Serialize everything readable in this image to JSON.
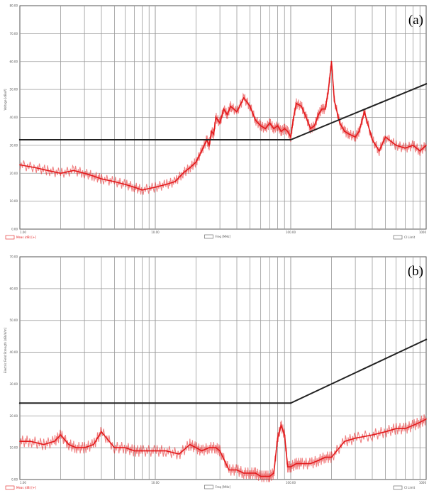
{
  "colors": {
    "measurement": "#e31a1c",
    "limit": "#222222",
    "grid": "#9a9a9a",
    "background": "#ffffff"
  },
  "chart_data": [
    {
      "type": "line",
      "panel_label": "(a)",
      "xscale": "log",
      "xlim": [
        1,
        1000
      ],
      "ylim": [
        0,
        80
      ],
      "xlabel": "Freq [MHz]",
      "ylabel": "Voltage [dBuV]",
      "xticks": [
        "1.00",
        "10.00",
        "100.00",
        "1000"
      ],
      "yticks": [
        "0.00",
        "10.00",
        "20.00",
        "30.00",
        "40.00",
        "50.00",
        "60.00",
        "70.00",
        "80.00"
      ],
      "legend": {
        "measurement": "Meas (dB) [+]",
        "limit": "CI Limit"
      },
      "grid": true,
      "series": [
        {
          "role": "measurement",
          "x": [
            1,
            1.3,
            1.6,
            2,
            2.5,
            3,
            3.5,
            4,
            5,
            6,
            7,
            8,
            10,
            12,
            14,
            16,
            18,
            20,
            22,
            24,
            25,
            26,
            27,
            28,
            30,
            32,
            34,
            36,
            40,
            45,
            50,
            55,
            60,
            65,
            70,
            75,
            80,
            85,
            90,
            95,
            100,
            105,
            110,
            120,
            130,
            140,
            150,
            160,
            170,
            180,
            190,
            200,
            210,
            230,
            250,
            270,
            300,
            320,
            350,
            400,
            450,
            500,
            600,
            700,
            800,
            900,
            1000
          ],
          "y": [
            23,
            22,
            21,
            20,
            21,
            20,
            19,
            18,
            17,
            16,
            15,
            14,
            15,
            16,
            17,
            20,
            22,
            24,
            28,
            32,
            30,
            35,
            34,
            40,
            38,
            43,
            41,
            44,
            42,
            47,
            44,
            39,
            37,
            36,
            38,
            36,
            37,
            35,
            36,
            35,
            33,
            40,
            45,
            44,
            40,
            36,
            37,
            41,
            43,
            43,
            50,
            60,
            46,
            38,
            35,
            34,
            33,
            35,
            42,
            32,
            28,
            33,
            30,
            29,
            30,
            28,
            30
          ]
        },
        {
          "role": "limit",
          "x": [
            1,
            100,
            1000
          ],
          "y": [
            32,
            32,
            52
          ]
        }
      ]
    },
    {
      "type": "line",
      "panel_label": "(b)",
      "xscale": "log",
      "xlim": [
        1,
        1000
      ],
      "ylim": [
        0,
        70
      ],
      "xlabel": "Freq [MHz]",
      "ylabel": "Electric Field Strength [dBuV/m]",
      "xticks": [
        "1.00",
        "10.00",
        "100.00",
        "1000"
      ],
      "yticks": [
        "0.00",
        "10.00",
        "20.00",
        "30.00",
        "40.00",
        "50.00",
        "60.00",
        "70.00"
      ],
      "legend": {
        "measurement": "Meas (dB) [+]",
        "limit": "CI Limit"
      },
      "grid": true,
      "series": [
        {
          "role": "measurement",
          "x": [
            1,
            1.2,
            1.5,
            1.8,
            2,
            2.3,
            2.6,
            3,
            3.5,
            4,
            5,
            6,
            7,
            8,
            10,
            12,
            15,
            18,
            20,
            22,
            25,
            28,
            30,
            35,
            40,
            45,
            50,
            55,
            60,
            65,
            70,
            75,
            80,
            85,
            90,
            95,
            100,
            110,
            120,
            140,
            160,
            180,
            200,
            250,
            300,
            400,
            500,
            600,
            700,
            800,
            900,
            1000
          ],
          "y": [
            12,
            12,
            11,
            12,
            14,
            11,
            10,
            10,
            11,
            15,
            10,
            10,
            9,
            9,
            9,
            9,
            8,
            11,
            10,
            9,
            10,
            10,
            9,
            3,
            3,
            2,
            2,
            2,
            1,
            1,
            1,
            2,
            13,
            17,
            14,
            4,
            4,
            5,
            5,
            5,
            6,
            7,
            7,
            12,
            13,
            14,
            15,
            16,
            16,
            17,
            18,
            19
          ]
        },
        {
          "role": "limit",
          "x": [
            1,
            100,
            1000
          ],
          "y": [
            24,
            24,
            44
          ]
        }
      ]
    }
  ]
}
